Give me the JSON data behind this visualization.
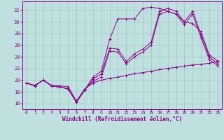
{
  "background_color": "#c0e0e0",
  "grid_color": "#a0c8c8",
  "line_color": "#880088",
  "xlabel": "Windchill (Refroidissement éolien,°C)",
  "xlim": [
    -0.5,
    23.5
  ],
  "ylim": [
    15.0,
    33.5
  ],
  "yticks": [
    16,
    18,
    20,
    22,
    24,
    26,
    28,
    30,
    32
  ],
  "xticks": [
    0,
    1,
    2,
    3,
    4,
    5,
    6,
    7,
    8,
    9,
    10,
    11,
    12,
    13,
    14,
    15,
    16,
    17,
    18,
    19,
    20,
    21,
    22,
    23
  ],
  "series": [
    {
      "x": [
        0,
        1,
        2,
        3,
        4,
        5,
        6,
        7,
        8,
        9,
        10,
        11,
        12,
        13,
        14,
        15,
        16,
        17,
        18,
        19,
        20,
        21,
        22,
        23
      ],
      "y": [
        19.5,
        19.0,
        20.0,
        19.0,
        18.8,
        18.5,
        16.2,
        18.3,
        20.5,
        21.5,
        27.0,
        30.5,
        30.5,
        30.5,
        32.3,
        32.5,
        32.3,
        31.8,
        31.3,
        30.0,
        29.7,
        28.3,
        24.3,
        23.3
      ]
    },
    {
      "x": [
        0,
        1,
        2,
        3,
        4,
        5,
        6,
        7,
        8,
        9,
        10,
        11,
        12,
        13,
        14,
        15,
        16,
        17,
        18,
        19,
        20,
        21,
        22,
        23
      ],
      "y": [
        19.5,
        19.0,
        20.0,
        19.0,
        18.8,
        18.5,
        16.2,
        18.3,
        20.2,
        21.0,
        25.5,
        25.3,
        23.2,
        24.5,
        25.3,
        26.5,
        31.8,
        32.3,
        31.8,
        30.0,
        31.8,
        27.8,
        24.0,
        22.8
      ]
    },
    {
      "x": [
        0,
        1,
        2,
        3,
        4,
        5,
        6,
        7,
        8,
        9,
        10,
        11,
        12,
        13,
        14,
        15,
        16,
        17,
        18,
        19,
        20,
        21,
        22,
        23
      ],
      "y": [
        19.5,
        19.0,
        20.0,
        19.0,
        18.8,
        18.5,
        16.2,
        18.3,
        19.8,
        20.5,
        25.0,
        24.8,
        22.8,
        24.0,
        24.8,
        26.0,
        31.3,
        31.8,
        31.3,
        29.5,
        31.3,
        27.3,
        23.5,
        22.5
      ]
    },
    {
      "x": [
        0,
        1,
        2,
        3,
        4,
        5,
        6,
        7,
        8,
        9,
        10,
        11,
        12,
        13,
        14,
        15,
        16,
        17,
        18,
        19,
        20,
        21,
        22,
        23
      ],
      "y": [
        19.5,
        19.1,
        20.0,
        19.1,
        19.0,
        18.9,
        16.4,
        18.5,
        19.5,
        20.0,
        20.3,
        20.5,
        20.8,
        21.1,
        21.3,
        21.5,
        21.8,
        22.0,
        22.2,
        22.4,
        22.6,
        22.7,
        22.9,
        23.2
      ]
    }
  ]
}
